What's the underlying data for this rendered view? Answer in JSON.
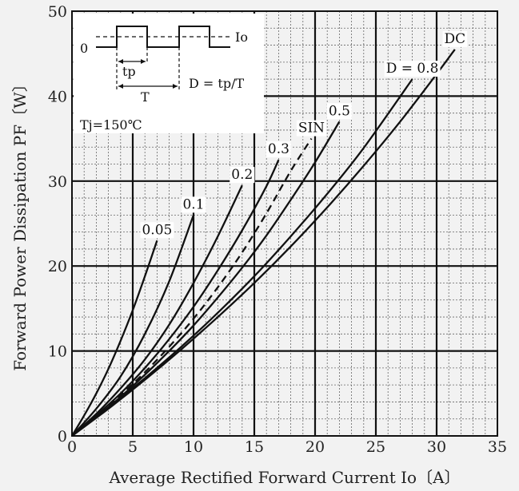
{
  "chart_data": {
    "type": "line",
    "title": "",
    "xlabel": "Average Rectified Forward Current  Io〔A〕",
    "ylabel": "Forward Power Dissipation  PF〔W〕",
    "xlim": [
      0,
      35
    ],
    "ylim": [
      0,
      50
    ],
    "xticks": [
      "0",
      "5",
      "10",
      "15",
      "20",
      "25",
      "30",
      "35"
    ],
    "yticks": [
      "0",
      "10",
      "20",
      "30",
      "40",
      "50"
    ],
    "grid": true,
    "inset": {
      "level_label": "Io",
      "zero_label": "0",
      "tp_label": "tp",
      "period_label": "T",
      "duty_formula": "D = tp/T",
      "temperature": "Tj=150℃"
    },
    "series": [
      {
        "name": "0.05",
        "style": "solid",
        "x": [
          0,
          1,
          2,
          3,
          4,
          5,
          6,
          7
        ],
        "y": [
          0,
          2.4,
          5.0,
          7.9,
          11.2,
          14.8,
          18.8,
          23.0
        ]
      },
      {
        "name": "0.1",
        "style": "solid",
        "x": [
          0,
          2,
          4,
          6,
          8,
          10
        ],
        "y": [
          0,
          3.2,
          7.0,
          12.0,
          18.2,
          26.0
        ]
      },
      {
        "name": "0.2",
        "style": "solid",
        "x": [
          0,
          2,
          4,
          6,
          8,
          10,
          12,
          14
        ],
        "y": [
          0,
          2.6,
          5.6,
          9.0,
          13.1,
          18.0,
          23.5,
          29.5
        ]
      },
      {
        "name": "0.3",
        "style": "solid",
        "x": [
          0,
          2,
          4,
          6,
          8,
          10,
          12,
          14,
          16,
          17
        ],
        "y": [
          0,
          2.4,
          5.0,
          8.0,
          11.4,
          15.2,
          19.5,
          24.2,
          29.4,
          32.5
        ]
      },
      {
        "name": "SIN",
        "style": "dashed",
        "x": [
          0,
          2,
          4,
          6,
          8,
          10,
          12,
          14,
          16,
          18,
          19.7
        ],
        "y": [
          0,
          2.3,
          4.8,
          7.5,
          10.5,
          13.8,
          17.5,
          21.6,
          26.2,
          31.2,
          35.0
        ]
      },
      {
        "name": "0.5",
        "style": "solid",
        "x": [
          0,
          2,
          4,
          6,
          8,
          10,
          12,
          14,
          16,
          18,
          20,
          22
        ],
        "y": [
          0,
          2.2,
          4.6,
          7.2,
          10.0,
          13.0,
          16.3,
          19.8,
          23.6,
          27.8,
          32.2,
          37.0
        ]
      },
      {
        "name": "D = 0.8",
        "style": "solid",
        "x": [
          0,
          3,
          6,
          9,
          12,
          15,
          18,
          21,
          24,
          28
        ],
        "y": [
          0,
          3.3,
          6.8,
          10.5,
          14.5,
          18.8,
          23.5,
          28.5,
          33.9,
          42.0
        ]
      },
      {
        "name": "DC",
        "style": "solid",
        "x": [
          0,
          3,
          6,
          9,
          12,
          15,
          18,
          21,
          24,
          27,
          30,
          31.5
        ],
        "y": [
          0,
          3.2,
          6.6,
          10.2,
          14.0,
          18.0,
          22.3,
          26.9,
          31.8,
          37.0,
          42.6,
          45.5
        ]
      }
    ]
  }
}
